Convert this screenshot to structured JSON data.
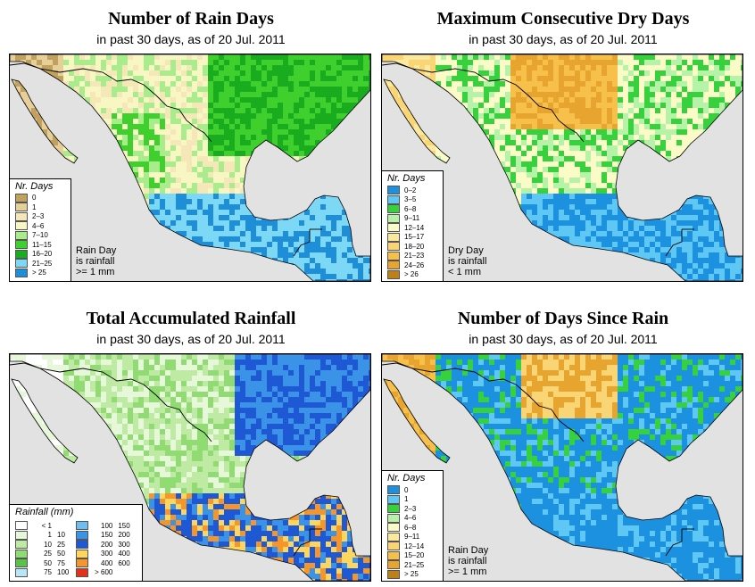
{
  "panels": [
    {
      "title": "Number of Rain Days",
      "subtitle": "in past 30 days, as of  20 Jul. 2011",
      "legend_title": "Nr. Days",
      "legend": [
        {
          "label": "0",
          "color": "#c1a15e"
        },
        {
          "label": "1",
          "color": "#e7cf9a"
        },
        {
          "label": "2–3",
          "color": "#f6e7b8"
        },
        {
          "label": "4–6",
          "color": "#f8f7c4"
        },
        {
          "label": "7–10",
          "color": "#a8ec8c"
        },
        {
          "label": "11–15",
          "color": "#3fd02e"
        },
        {
          "label": "16–20",
          "color": "#19ac1f"
        },
        {
          "label": "21–25",
          "color": "#7dd8f5"
        },
        {
          "label": "> 25",
          "color": "#1e8ed8"
        }
      ],
      "note": [
        "Rain Day",
        "is rainfall",
        ">= 1 mm"
      ]
    },
    {
      "title": "Maximum Consecutive Dry Days",
      "subtitle": "in past 30 days, as of  20 Jul. 2011",
      "legend_title": "Nr. Days",
      "legend": [
        {
          "label": "0–2",
          "color": "#1b91e0"
        },
        {
          "label": "3–5",
          "color": "#5fc7f3"
        },
        {
          "label": "6–8",
          "color": "#37d13d"
        },
        {
          "label": "9–11",
          "color": "#b7f2a9"
        },
        {
          "label": "12–14",
          "color": "#fbfbc8"
        },
        {
          "label": "15–17",
          "color": "#fbe99e"
        },
        {
          "label": "18–20",
          "color": "#fad575"
        },
        {
          "label": "21–23",
          "color": "#f6c04a"
        },
        {
          "label": "24–26",
          "color": "#e7a530"
        },
        {
          "label": "> 26",
          "color": "#c08019"
        }
      ],
      "note": [
        "Dry Day",
        "is rainfall",
        "< 1 mm"
      ]
    },
    {
      "title": "Total Accumulated Rainfall",
      "subtitle": "in past 30 days, as of  20 Jul. 2011",
      "legend_title": "Rainfall (mm)",
      "legend_left": [
        {
          "lo": "< 1",
          "hi": "",
          "color": "#ffffff"
        },
        {
          "lo": "1",
          "hi": "10",
          "color": "#e7f7d9"
        },
        {
          "lo": "10",
          "hi": "25",
          "color": "#bfeaa4"
        },
        {
          "lo": "25",
          "hi": "50",
          "color": "#90db72"
        },
        {
          "lo": "50",
          "hi": "75",
          "color": "#57c448"
        },
        {
          "lo": "75",
          "hi": "100",
          "color": "#b6e6f7"
        }
      ],
      "legend_right": [
        {
          "lo": "100",
          "hi": "150",
          "color": "#6dbdf0"
        },
        {
          "lo": "150",
          "hi": "200",
          "color": "#3b93e8"
        },
        {
          "lo": "200",
          "hi": "300",
          "color": "#1f58d4"
        },
        {
          "lo": "300",
          "hi": "400",
          "color": "#fcd65d"
        },
        {
          "lo": "400",
          "hi": "600",
          "color": "#f6962a"
        },
        {
          "lo": "> 600",
          "hi": "",
          "color": "#e3321b"
        }
      ]
    },
    {
      "title": "Number of Days Since Rain",
      "subtitle": "in past 30 days, as of  20 Jul. 2011",
      "legend_title": "Nr. Days",
      "legend": [
        {
          "label": "0",
          "color": "#1b91e0"
        },
        {
          "label": "1",
          "color": "#5fc7f3"
        },
        {
          "label": "2–3",
          "color": "#37d13d"
        },
        {
          "label": "4–6",
          "color": "#b7f2a9"
        },
        {
          "label": "6–8",
          "color": "#fbfbc8"
        },
        {
          "label": "9–11",
          "color": "#fbe99e"
        },
        {
          "label": "12–14",
          "color": "#fad575"
        },
        {
          "label": "15–20",
          "color": "#f6c04a"
        },
        {
          "label": "21–25",
          "color": "#e7a530"
        },
        {
          "label": "> 25",
          "color": "#c08019"
        }
      ],
      "note": [
        "Rain Day",
        "is rainfall",
        ">= 1 mm"
      ]
    }
  ],
  "colors": {
    "ocean": "#e2e2e2",
    "border": "#000000"
  }
}
